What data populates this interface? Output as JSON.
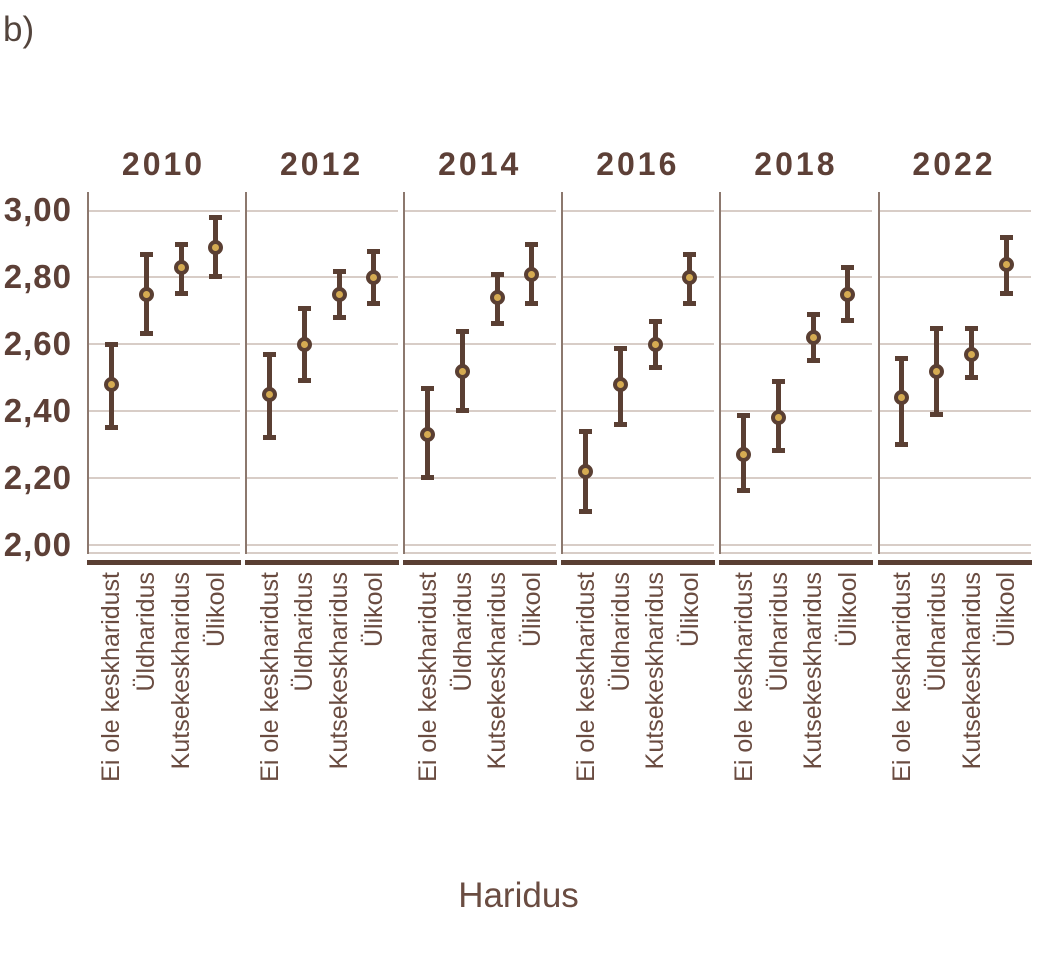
{
  "figure_label": "b)",
  "axis": {
    "x_title": "Haridus",
    "y_ticks": [
      "3,00",
      "2,80",
      "2,60",
      "2,40",
      "2,20",
      "2,00"
    ],
    "y_tick_values": [
      3.0,
      2.8,
      2.6,
      2.4,
      2.2,
      2.0
    ]
  },
  "colors": {
    "background": "#ffffff",
    "text_dark": "#5d4037",
    "text_medium": "#6a4c41",
    "line_dark": "#5a3f33",
    "marker_fill": "#d5ab52",
    "gridline": "#d8cdc7",
    "panel_border": "#8c786e"
  },
  "chart_data": {
    "type": "scatter",
    "subtype": "point-estimates-with-error-bars",
    "title": "",
    "xlabel": "Haridus",
    "ylabel": "",
    "ylim": [
      1.97,
      3.06
    ],
    "grid": "horizontal-major",
    "facets": [
      "2010",
      "2012",
      "2014",
      "2016",
      "2018",
      "2022"
    ],
    "categories": [
      "Ei ole keskharidust",
      "Üldharidus",
      "Kutsekeskharidus",
      "Ülikool"
    ],
    "series": [
      {
        "name": "2010",
        "points": [
          {
            "category": "Ei ole keskharidust",
            "estimate": 2.48,
            "ci_low": 2.35,
            "ci_high": 2.6
          },
          {
            "category": "Üldharidus",
            "estimate": 2.75,
            "ci_low": 2.63,
            "ci_high": 2.87
          },
          {
            "category": "Kutsekeskharidus",
            "estimate": 2.83,
            "ci_low": 2.75,
            "ci_high": 2.9
          },
          {
            "category": "Ülikool",
            "estimate": 2.89,
            "ci_low": 2.8,
            "ci_high": 2.98
          }
        ]
      },
      {
        "name": "2012",
        "points": [
          {
            "category": "Ei ole keskharidust",
            "estimate": 2.45,
            "ci_low": 2.32,
            "ci_high": 2.57
          },
          {
            "category": "Üldharidus",
            "estimate": 2.6,
            "ci_low": 2.49,
            "ci_high": 2.71
          },
          {
            "category": "Kutsekeskharidus",
            "estimate": 2.75,
            "ci_low": 2.68,
            "ci_high": 2.82
          },
          {
            "category": "Ülikool",
            "estimate": 2.8,
            "ci_low": 2.72,
            "ci_high": 2.88
          }
        ]
      },
      {
        "name": "2014",
        "points": [
          {
            "category": "Ei ole keskharidust",
            "estimate": 2.33,
            "ci_low": 2.2,
            "ci_high": 2.47
          },
          {
            "category": "Üldharidus",
            "estimate": 2.52,
            "ci_low": 2.4,
            "ci_high": 2.64
          },
          {
            "category": "Kutsekeskharidus",
            "estimate": 2.74,
            "ci_low": 2.66,
            "ci_high": 2.81
          },
          {
            "category": "Ülikool",
            "estimate": 2.81,
            "ci_low": 2.72,
            "ci_high": 2.9
          }
        ]
      },
      {
        "name": "2016",
        "points": [
          {
            "category": "Ei ole keskharidust",
            "estimate": 2.22,
            "ci_low": 2.1,
            "ci_high": 2.34
          },
          {
            "category": "Üldharidus",
            "estimate": 2.48,
            "ci_low": 2.36,
            "ci_high": 2.59
          },
          {
            "category": "Kutsekeskharidus",
            "estimate": 2.6,
            "ci_low": 2.53,
            "ci_high": 2.67
          },
          {
            "category": "Ülikool",
            "estimate": 2.8,
            "ci_low": 2.72,
            "ci_high": 2.87
          }
        ]
      },
      {
        "name": "2018",
        "points": [
          {
            "category": "Ei ole keskharidust",
            "estimate": 2.27,
            "ci_low": 2.16,
            "ci_high": 2.39
          },
          {
            "category": "Üldharidus",
            "estimate": 2.38,
            "ci_low": 2.28,
            "ci_high": 2.49
          },
          {
            "category": "Kutsekeskharidus",
            "estimate": 2.62,
            "ci_low": 2.55,
            "ci_high": 2.69
          },
          {
            "category": "Ülikool",
            "estimate": 2.75,
            "ci_low": 2.67,
            "ci_high": 2.83
          }
        ]
      },
      {
        "name": "2022",
        "points": [
          {
            "category": "Ei ole keskharidust",
            "estimate": 2.44,
            "ci_low": 2.3,
            "ci_high": 2.56
          },
          {
            "category": "Üldharidus",
            "estimate": 2.52,
            "ci_low": 2.39,
            "ci_high": 2.65
          },
          {
            "category": "Kutsekeskharidus",
            "estimate": 2.57,
            "ci_low": 2.5,
            "ci_high": 2.65
          },
          {
            "category": "Ülikool",
            "estimate": 2.84,
            "ci_low": 2.75,
            "ci_high": 2.92
          }
        ]
      }
    ]
  }
}
